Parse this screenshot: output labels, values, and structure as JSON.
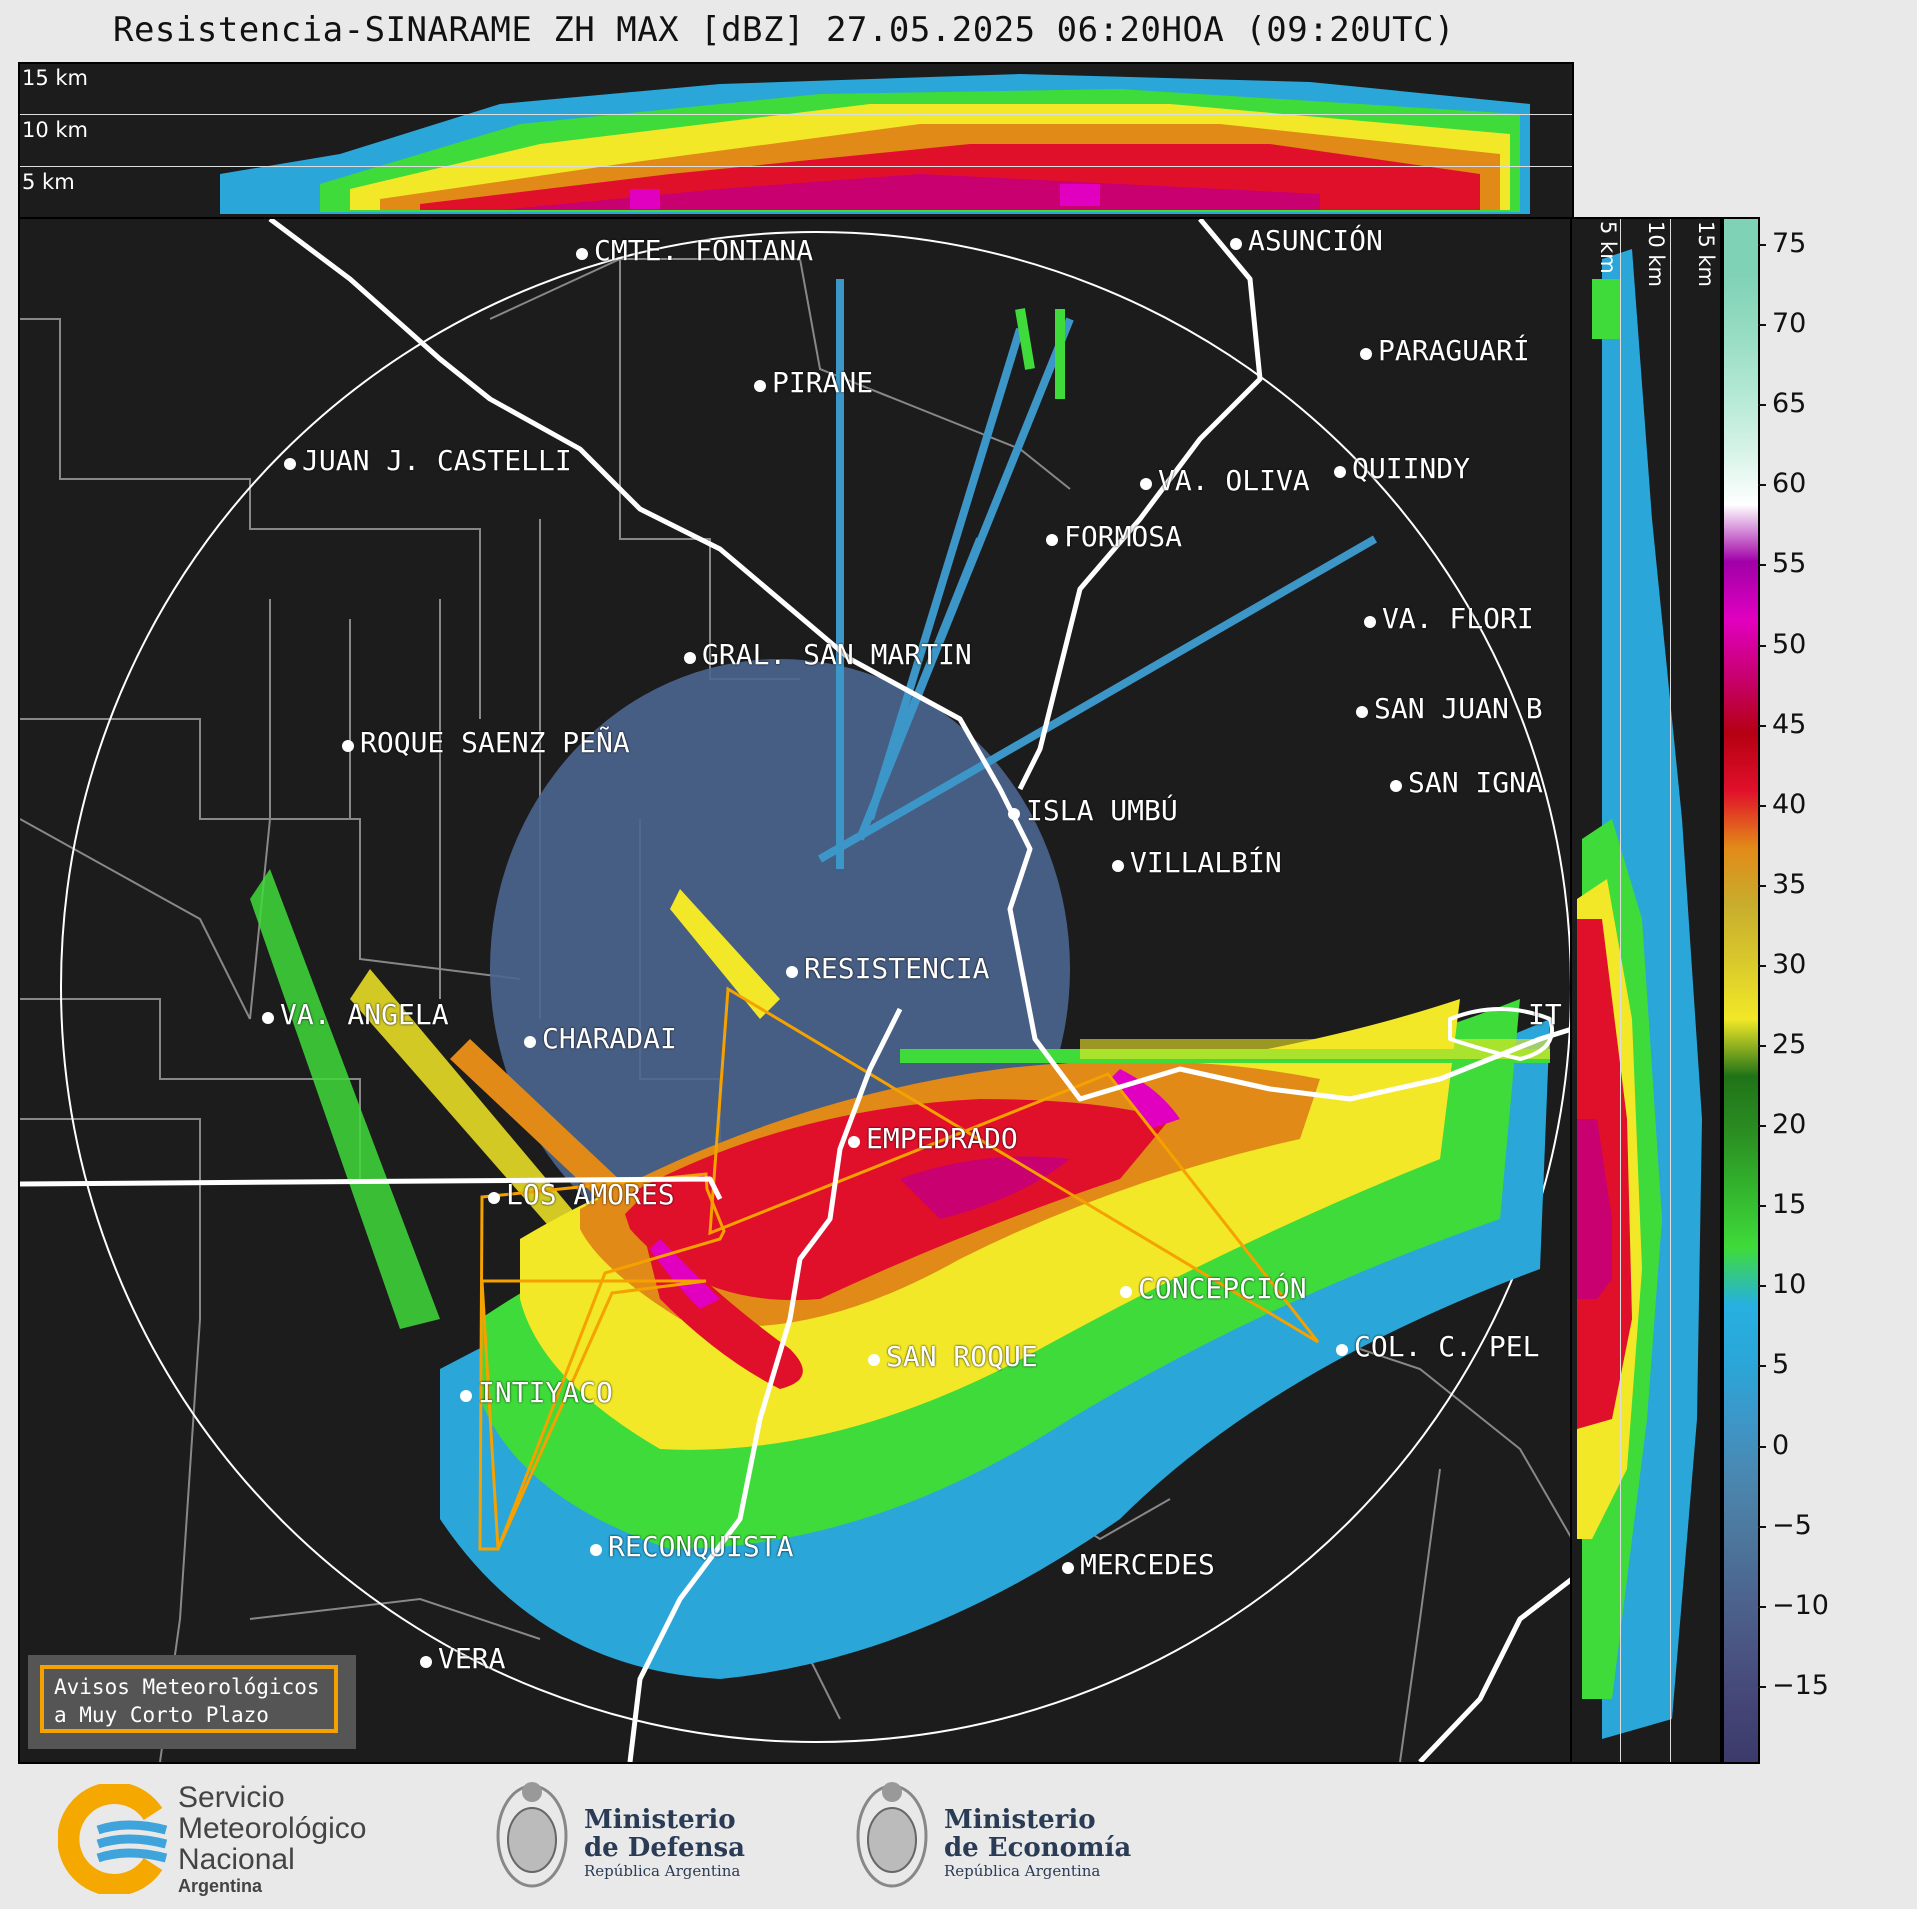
{
  "title": "Resistencia-SINARAME ZH MAX [dBZ] 27.05.2025 06:20HOA (09:20UTC)",
  "height_labels": {
    "top": [
      "15 km",
      "10 km",
      "5 km"
    ],
    "side": [
      "5 km",
      "10 km",
      "15 km"
    ]
  },
  "colorbar": {
    "ticks": [
      "75",
      "70",
      "65",
      "60",
      "55",
      "50",
      "45",
      "40",
      "35",
      "30",
      "25",
      "20",
      "15",
      "10",
      "5",
      "0",
      "−5",
      "−10",
      "−15"
    ],
    "colors": [
      "#3b3a6b",
      "#444576",
      "#4a5583",
      "#4c6690",
      "#4d789e",
      "#4a87b0",
      "#3c97c8",
      "#2aa6d8",
      "#27b0e0",
      "#3fdb3a",
      "#33b52e",
      "#2b8e22",
      "#207318",
      "#f2e827",
      "#d9c92c",
      "#c8ad2d",
      "#e28a18",
      "#e0102b",
      "#b50012",
      "#c80070",
      "#e100c0",
      "#a000a8",
      "#ffffff",
      "#d4f2e6",
      "#b2e8d4",
      "#96dcc3",
      "#80d2b6"
    ]
  },
  "cities": [
    {
      "name": "CMTE. FONTANA"
    },
    {
      "name": "PIRANE"
    },
    {
      "name": "JUAN J. CASTELLI"
    },
    {
      "name": "ASUNCIÓN"
    },
    {
      "name": "PARAGUARÍ"
    },
    {
      "name": "VA. OLIVA"
    },
    {
      "name": "QUIINDY"
    },
    {
      "name": "FORMOSA"
    },
    {
      "name": "VA. FLORI"
    },
    {
      "name": "GRAL. SAN MARTIN"
    },
    {
      "name": "SAN JUAN B"
    },
    {
      "name": "ROQUE SAENZ PEÑA"
    },
    {
      "name": "SAN IGNA"
    },
    {
      "name": "ISLA UMBÚ"
    },
    {
      "name": "VILLALBÍN"
    },
    {
      "name": "RESISTENCIA"
    },
    {
      "name": "VA. ANGELA"
    },
    {
      "name": "CHARADAI"
    },
    {
      "name": "EMPEDRADO"
    },
    {
      "name": "LOS AMORES"
    },
    {
      "name": "CONCEPCIÓN"
    },
    {
      "name": "SAN ROQUE"
    },
    {
      "name": "COL. C. PEL"
    },
    {
      "name": "INTIYACO"
    },
    {
      "name": "RECONQUISTA"
    },
    {
      "name": "MERCEDES"
    },
    {
      "name": "VERA"
    },
    {
      "name": "IT"
    }
  ],
  "notice": {
    "line1": "Avisos Meteorológicos",
    "line2": "a Muy Corto Plazo"
  },
  "footer": {
    "smn": [
      "Servicio",
      "Meteorológico",
      "Nacional",
      "Argentina"
    ],
    "defensa": [
      "Ministerio",
      "de Defensa",
      "República Argentina"
    ],
    "economia": [
      "Ministerio",
      "de Economía",
      "República Argentina"
    ]
  }
}
